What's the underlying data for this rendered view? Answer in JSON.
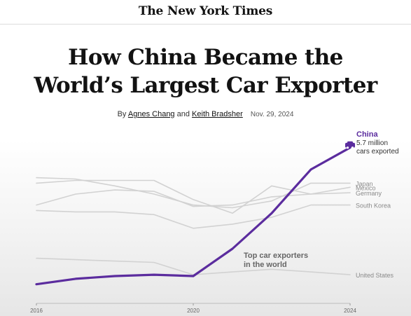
{
  "masthead": "The New York Times",
  "headline": [
    "How China Became the",
    "World’s Largest Car Exporter"
  ],
  "byline": {
    "prefix": "By",
    "author1": "Agnes Chang",
    "conjunction": "and",
    "author2": "Keith Bradsher",
    "date": "Nov. 29, 2024"
  },
  "chart_data": {
    "type": "line",
    "title": "",
    "annotation": [
      "Top car exporters",
      "in the world"
    ],
    "x": [
      2016,
      2017,
      2018,
      2019,
      2020,
      2021,
      2022,
      2023,
      2024
    ],
    "xticks": [
      "2016",
      "2020",
      "2024"
    ],
    "ylim": [
      0,
      7
    ],
    "highlight_label": {
      "name": "China",
      "value_line1": "5.7 million",
      "value_line2": "cars exported"
    },
    "colors": {
      "highlight": "#5b2c9e",
      "others": "#d2d2d2"
    },
    "series": [
      {
        "name": "China",
        "values": [
          0.7,
          0.9,
          1.0,
          1.05,
          1.0,
          2.0,
          3.3,
          4.9,
          5.7
        ]
      },
      {
        "name": "Japan",
        "values": [
          4.6,
          4.55,
          4.3,
          4.0,
          3.6,
          3.5,
          3.75,
          4.4,
          4.4
        ]
      },
      {
        "name": "Mexico",
        "values": [
          3.6,
          4.0,
          4.15,
          4.1,
          3.55,
          3.6,
          3.9,
          4.0,
          4.25
        ]
      },
      {
        "name": "Germany",
        "values": [
          4.4,
          4.5,
          4.5,
          4.5,
          3.8,
          3.3,
          4.3,
          4.0,
          4.05
        ]
      },
      {
        "name": "South Korea",
        "values": [
          3.4,
          3.35,
          3.35,
          3.25,
          2.75,
          2.9,
          3.15,
          3.6,
          3.6
        ]
      },
      {
        "name": "United States",
        "values": [
          1.65,
          1.6,
          1.55,
          1.5,
          1.05,
          1.15,
          1.25,
          1.15,
          1.05
        ]
      }
    ]
  }
}
